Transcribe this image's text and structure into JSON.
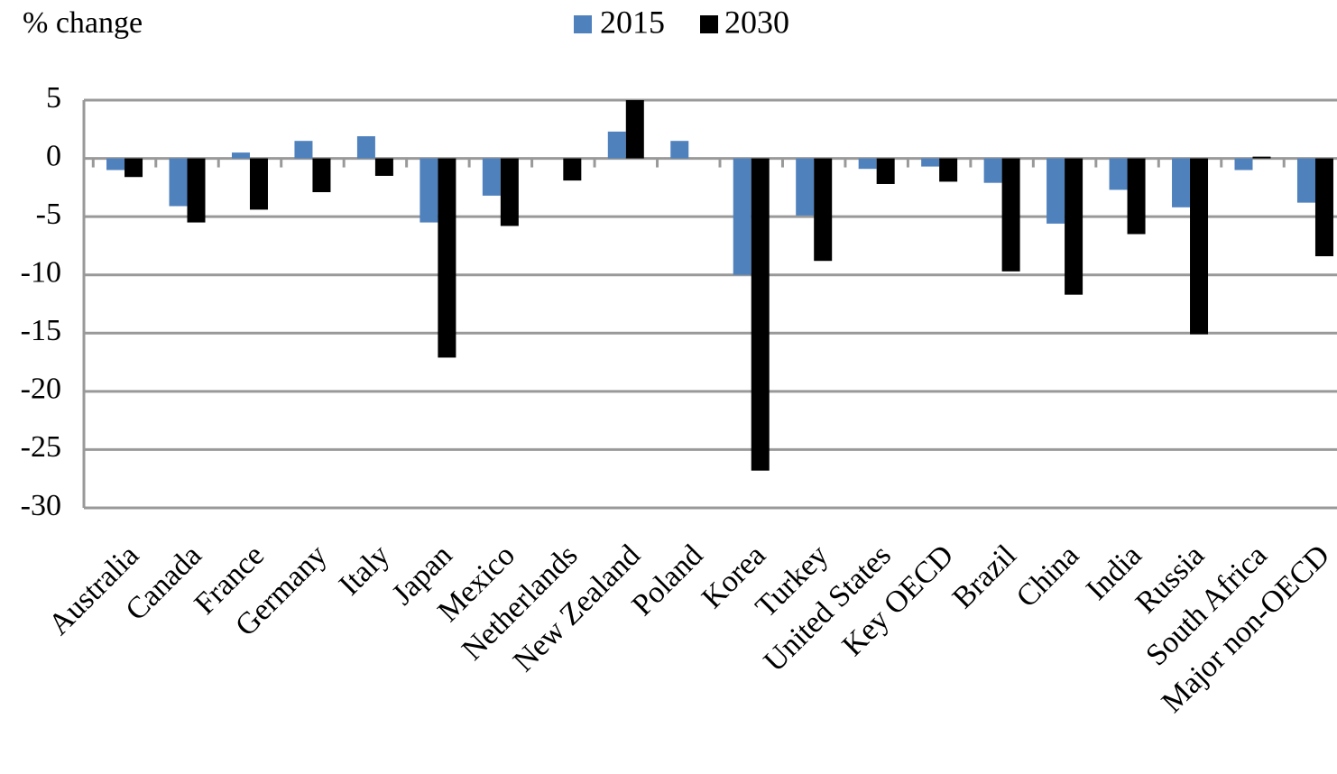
{
  "chart_data": {
    "type": "bar",
    "y_axis_label": "% change",
    "categories": [
      "Australia",
      "Canada",
      "France",
      "Germany",
      "Italy",
      "Japan",
      "Mexico",
      "Netherlands",
      "New Zealand",
      "Poland",
      "Korea",
      "Turkey",
      "United States",
      "Key OECD",
      "Brazil",
      "China",
      "India",
      "Russia",
      "South Africa",
      "Major non-OECD"
    ],
    "series": [
      {
        "name": "2015",
        "color": "#4f81bd",
        "values": [
          -1.0,
          -4.1,
          0.5,
          1.5,
          1.9,
          -5.5,
          -3.2,
          0,
          2.3,
          1.5,
          -10.0,
          -4.9,
          -0.9,
          -0.7,
          -2.1,
          -5.6,
          -2.7,
          -4.2,
          -1.0,
          -3.8
        ]
      },
      {
        "name": "2030",
        "color": "#000000",
        "values": [
          -1.6,
          -5.5,
          -4.4,
          -2.9,
          -1.5,
          -17.1,
          -5.8,
          -1.9,
          5.0,
          0,
          -26.8,
          -8.8,
          -2.2,
          -2.0,
          -9.7,
          -11.7,
          -6.5,
          -15.1,
          0.15,
          -8.4
        ]
      }
    ],
    "ylim": [
      -30,
      5
    ],
    "yticks": [
      5,
      0,
      -5,
      -10,
      -15,
      -20,
      -25,
      -30
    ],
    "grid": true,
    "legend": "top"
  }
}
